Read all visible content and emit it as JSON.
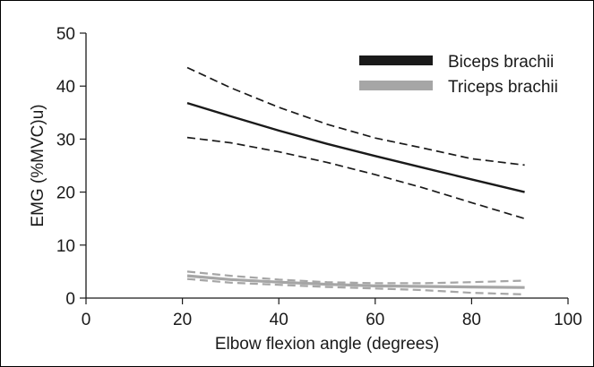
{
  "chart_data": {
    "type": "line",
    "title": "",
    "xlabel": "Elbow flexion angle (degrees)",
    "ylabel": "EMG (%MVC)u)",
    "xlim": [
      0,
      100
    ],
    "ylim": [
      0,
      50
    ],
    "xticks": [
      "0",
      "20",
      "40",
      "60",
      "80",
      "100"
    ],
    "yticks": [
      "0",
      "10",
      "20",
      "30",
      "40",
      "50"
    ],
    "legend_position": "top-right",
    "series": [
      {
        "name": "Biceps brachii",
        "color": "#1a1a1a",
        "x": [
          21,
          30,
          40,
          50,
          60,
          70,
          80,
          91
        ],
        "mean": [
          36.8,
          34.3,
          31.6,
          29.1,
          26.8,
          24.6,
          22.4,
          20.0
        ],
        "upper": [
          43.5,
          39.7,
          36.0,
          32.8,
          30.2,
          28.3,
          26.3,
          25.1
        ],
        "lower": [
          30.3,
          29.3,
          27.6,
          25.6,
          23.3,
          20.8,
          18.0,
          15.0
        ]
      },
      {
        "name": "Triceps brachii",
        "color": "#a6a6a6",
        "x": [
          21,
          30,
          40,
          50,
          60,
          70,
          80,
          91
        ],
        "mean": [
          4.2,
          3.5,
          3.0,
          2.6,
          2.3,
          2.2,
          2.1,
          2.0
        ],
        "upper": [
          5.0,
          4.2,
          3.5,
          3.0,
          2.8,
          2.8,
          3.0,
          3.3
        ],
        "lower": [
          3.6,
          2.9,
          2.5,
          2.1,
          1.8,
          1.5,
          1.0,
          0.7
        ]
      }
    ]
  }
}
